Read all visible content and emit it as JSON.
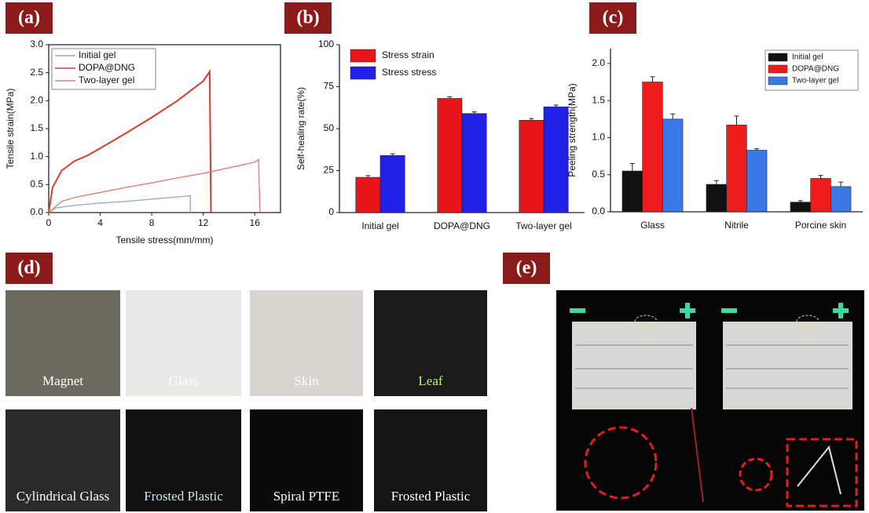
{
  "chart_data": [
    {
      "type": "line",
      "panel_label": "(a)",
      "x_label": "Tensile stress(mm/mm)",
      "y_label": "Tensile strain(MPa)",
      "xlim": [
        0,
        18
      ],
      "xticks": [
        0,
        4,
        8,
        12,
        16
      ],
      "ylim": [
        0,
        3
      ],
      "yticks": [
        {
          "value": 0,
          "label": "0.0"
        },
        0.5,
        {
          "value": 1,
          "label": "1.0"
        },
        1.5,
        {
          "value": 2,
          "label": "2.0"
        },
        2.5,
        {
          "value": 3,
          "label": "3.0"
        }
      ],
      "legend": "top-left",
      "series": [
        {
          "name": "Initial gel",
          "color": "#8fa8c8",
          "x": [
            0,
            0.5,
            2,
            4,
            6,
            8,
            10,
            11,
            11
          ],
          "values": [
            0,
            0.08,
            0.13,
            0.17,
            0.2,
            0.24,
            0.28,
            0.3,
            0
          ]
        },
        {
          "name": "DOPA@DNG",
          "color": "#d93b2b",
          "x": [
            0,
            0.3,
            1,
            2,
            3,
            4,
            6,
            8,
            10,
            12,
            12.5,
            12.6
          ],
          "values": [
            0,
            0.45,
            0.75,
            0.92,
            1.02,
            1.15,
            1.42,
            1.7,
            2.0,
            2.35,
            2.52,
            0
          ]
        },
        {
          "name": "Two-layer gel",
          "color": "#e07b70",
          "x": [
            0,
            1,
            2,
            4,
            6,
            8,
            10,
            12,
            14,
            16,
            16.3,
            16.4
          ],
          "values": [
            0,
            0.2,
            0.27,
            0.36,
            0.45,
            0.53,
            0.62,
            0.7,
            0.8,
            0.9,
            0.95,
            0
          ]
        }
      ]
    },
    {
      "type": "bar",
      "panel_label": "(b)",
      "y_label": "Self-healing rate(%)",
      "categories": [
        "Initial gel",
        "DOPA@DNG",
        "Two-layer gel"
      ],
      "ylim": [
        0,
        100
      ],
      "yticks": [
        0,
        25,
        50,
        75,
        100
      ],
      "legend": "top-left",
      "series": [
        {
          "name": "Stress strain",
          "color": "#e8151b",
          "values": [
            21,
            68,
            55
          ],
          "errors": [
            1,
            1,
            1
          ]
        },
        {
          "name": "Stress stress",
          "color": "#2020e8",
          "values": [
            34,
            59,
            63
          ],
          "errors": [
            1,
            1,
            1
          ]
        }
      ]
    },
    {
      "type": "bar",
      "panel_label": "(c)",
      "y_label": "Peeling strength(MPa)",
      "categories": [
        "Glass",
        "Nitrile",
        "Porcine skin"
      ],
      "ylim": [
        0,
        2.2
      ],
      "yticks": [
        {
          "value": 0,
          "label": "0.0"
        },
        0.5,
        {
          "value": 1,
          "label": "1.0"
        },
        1.5,
        {
          "value": 2,
          "label": "2.0"
        }
      ],
      "legend": "top-right",
      "series": [
        {
          "name": "Initial gel",
          "color": "#111111",
          "values": [
            0.55,
            0.37,
            0.13
          ],
          "errors": [
            0.1,
            0.05,
            0.02
          ]
        },
        {
          "name": "DOPA@DNG",
          "color": "#ee1c1c",
          "values": [
            1.75,
            1.17,
            0.45
          ],
          "errors": [
            0.07,
            0.12,
            0.04
          ]
        },
        {
          "name": "Two-layer gel",
          "color": "#3a78e8",
          "values": [
            1.25,
            0.83,
            0.34
          ],
          "errors": [
            0.07,
            0.02,
            0.06
          ]
        }
      ]
    }
  ],
  "photos_d": {
    "label": "(d)",
    "captions": [
      "Magnet",
      "Glass",
      "Skin",
      "Leaf",
      "Cylindrical Glass",
      "Frosted Plastic",
      "Spiral PTFE",
      "Frosted Plastic"
    ]
  },
  "photos_e": {
    "label": "(e)"
  }
}
